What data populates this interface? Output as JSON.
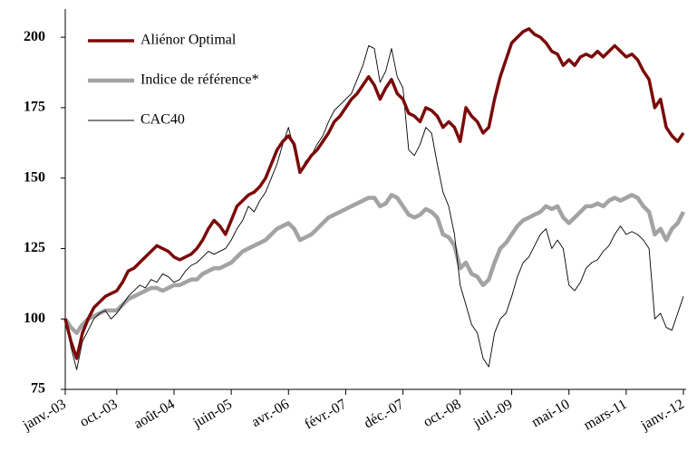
{
  "chart_data": {
    "type": "line",
    "categories": [
      "janv.-03",
      null,
      null,
      null,
      null,
      null,
      null,
      null,
      null,
      "oct.-03",
      null,
      null,
      null,
      null,
      null,
      null,
      null,
      null,
      null,
      "août-04",
      null,
      null,
      null,
      null,
      null,
      null,
      null,
      null,
      null,
      "juin-05",
      null,
      null,
      null,
      null,
      null,
      null,
      null,
      null,
      null,
      "avr.-06",
      null,
      null,
      null,
      null,
      null,
      null,
      null,
      null,
      null,
      "févr.-07",
      null,
      null,
      null,
      null,
      null,
      null,
      null,
      null,
      null,
      "déc.-07",
      null,
      null,
      null,
      null,
      null,
      null,
      null,
      null,
      null,
      "oct.-08",
      null,
      null,
      null,
      null,
      null,
      null,
      null,
      null,
      "juil.-09",
      null,
      null,
      null,
      null,
      null,
      null,
      null,
      null,
      null,
      "mai-10",
      null,
      null,
      null,
      null,
      null,
      null,
      null,
      null,
      null,
      "mars-11",
      null,
      null,
      null,
      null,
      null,
      null,
      null,
      null,
      null,
      "janv.-12"
    ],
    "series": [
      {
        "name": "Aliénor Optimal",
        "color": "#7b0a0a",
        "values": [
          100,
          92,
          86,
          95,
          100,
          104,
          106,
          108,
          109,
          110,
          113,
          117,
          118,
          120,
          122,
          124,
          126,
          125,
          124,
          122,
          121,
          122,
          123,
          125,
          128,
          132,
          135,
          133,
          130,
          135,
          140,
          142,
          144,
          145,
          147,
          150,
          155,
          160,
          163,
          165,
          162,
          152,
          155,
          158,
          160,
          163,
          166,
          170,
          172,
          175,
          178,
          180,
          183,
          186,
          183,
          178,
          182,
          185,
          180,
          178,
          173,
          172,
          170,
          175,
          174,
          172,
          168,
          170,
          168,
          163,
          175,
          172,
          170,
          166,
          168,
          178,
          186,
          192,
          198,
          200,
          202,
          203,
          201,
          200,
          198,
          195,
          194,
          190,
          192,
          190,
          193,
          194,
          193,
          195,
          193,
          195,
          197,
          195,
          193,
          194,
          192,
          188,
          185,
          175,
          178,
          168,
          165,
          163,
          166
        ]
      },
      {
        "name": "Indice de référence*",
        "color": "#a3a3a3",
        "values": [
          100,
          97,
          95,
          98,
          100,
          101,
          102,
          103,
          103,
          103,
          105,
          107,
          108,
          109,
          110,
          111,
          111,
          110,
          111,
          112,
          112,
          113,
          114,
          114,
          116,
          117,
          118,
          118,
          119,
          120,
          122,
          124,
          125,
          126,
          127,
          128,
          130,
          132,
          133,
          134,
          132,
          128,
          129,
          130,
          132,
          134,
          136,
          137,
          138,
          139,
          140,
          141,
          142,
          143,
          143,
          140,
          141,
          144,
          143,
          140,
          137,
          136,
          137,
          139,
          138,
          136,
          130,
          129,
          126,
          118,
          120,
          116,
          115,
          112,
          114,
          120,
          125,
          127,
          130,
          133,
          135,
          136,
          137,
          138,
          140,
          139,
          140,
          136,
          134,
          136,
          138,
          140,
          140,
          141,
          140,
          142,
          143,
          142,
          143,
          144,
          143,
          140,
          138,
          130,
          132,
          128,
          132,
          134,
          138
        ]
      },
      {
        "name": "CAC40",
        "color": "#000000",
        "values": [
          100,
          90,
          82,
          92,
          96,
          100,
          102,
          103,
          100,
          102,
          105,
          108,
          110,
          112,
          111,
          114,
          113,
          116,
          115,
          113,
          114,
          117,
          119,
          120,
          122,
          124,
          123,
          124,
          125,
          128,
          132,
          135,
          140,
          138,
          142,
          145,
          150,
          155,
          162,
          168,
          160,
          152,
          156,
          158,
          162,
          165,
          170,
          174,
          176,
          178,
          180,
          185,
          190,
          197,
          196,
          184,
          188,
          196,
          186,
          182,
          160,
          158,
          162,
          168,
          166,
          155,
          145,
          140,
          130,
          112,
          105,
          98,
          95,
          86,
          83,
          95,
          100,
          102,
          108,
          115,
          120,
          122,
          126,
          130,
          132,
          125,
          128,
          125,
          112,
          110,
          113,
          118,
          120,
          121,
          124,
          126,
          130,
          133,
          130,
          131,
          130,
          128,
          125,
          100,
          102,
          97,
          96,
          102,
          108
        ]
      }
    ],
    "ylim": [
      75,
      210
    ],
    "yticks": [
      75,
      100,
      125,
      150,
      175,
      200
    ],
    "legend": "top-left"
  }
}
